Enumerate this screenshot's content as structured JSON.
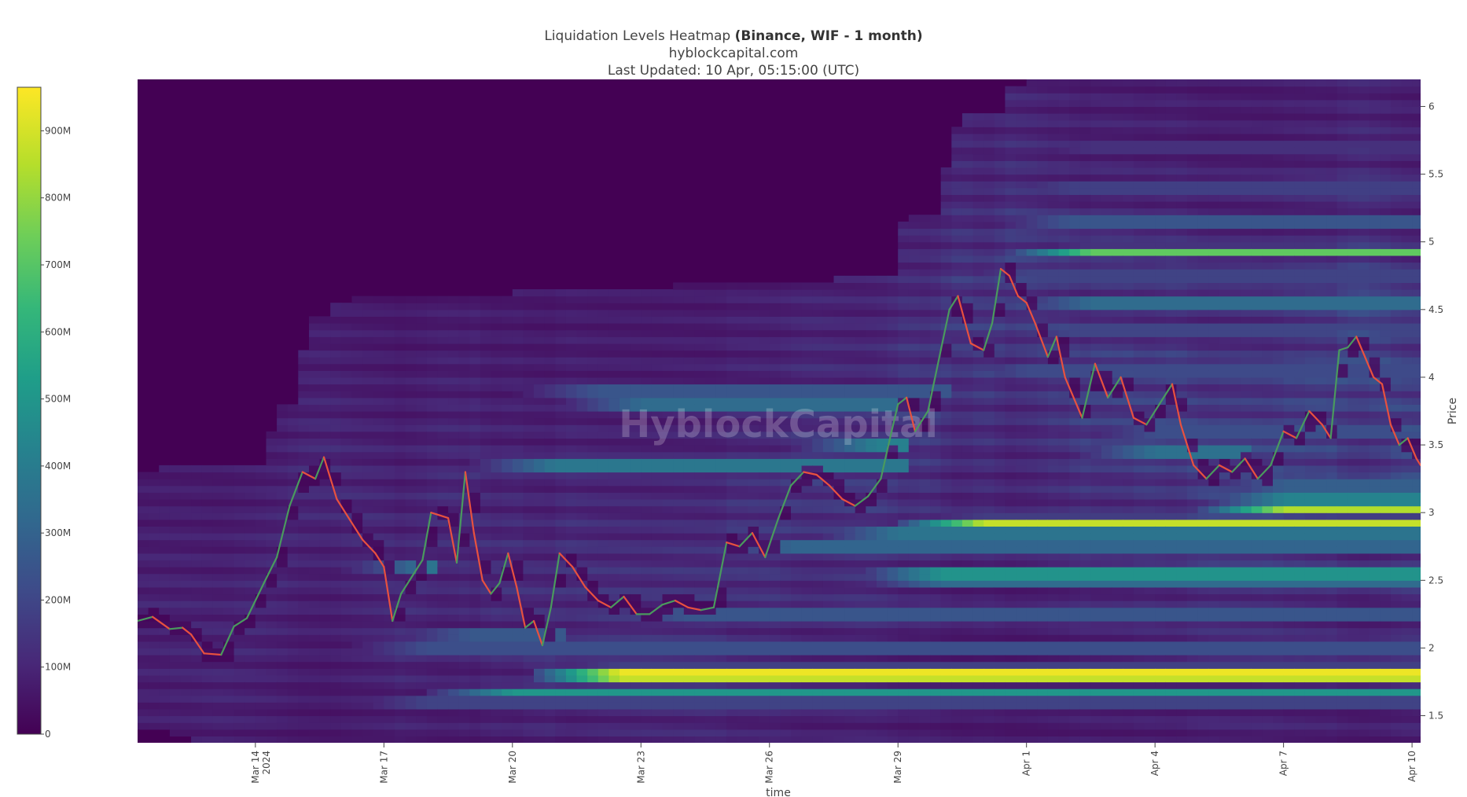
{
  "title": {
    "main": "Liquidation Levels Heatmap ",
    "bold": "(Binance, WIF - 1 month)",
    "site": "hyblockcapital.com",
    "updated": "Last Updated: 10 Apr, 05:15:00 (UTC)"
  },
  "watermark": "HyblockCapital",
  "colors": {
    "background": "#440154",
    "price_up": "#4a9a5e",
    "price_down": "#e8513f",
    "colorscale": [
      "#440154",
      "#482878",
      "#3e4a89",
      "#31688e",
      "#26828e",
      "#1f9e89",
      "#35b779",
      "#6ece58",
      "#b5de2b",
      "#fde725"
    ]
  },
  "chart_data": {
    "type": "heatmap",
    "title": "Liquidation Levels Heatmap (Binance, WIF - 1 month)",
    "xlabel": "time",
    "ylabel": "Price",
    "x_ticks": [
      {
        "label": "Mar 14",
        "sub": "2024",
        "day": 14
      },
      {
        "label": "Mar 17",
        "sub": "",
        "day": 17
      },
      {
        "label": "Mar 20",
        "sub": "",
        "day": 20
      },
      {
        "label": "Mar 23",
        "sub": "",
        "day": 23
      },
      {
        "label": "Mar 26",
        "sub": "",
        "day": 26
      },
      {
        "label": "Mar 29",
        "sub": "",
        "day": 29
      },
      {
        "label": "Apr 1",
        "sub": "",
        "day": 32
      },
      {
        "label": "Apr 4",
        "sub": "",
        "day": 35
      },
      {
        "label": "Apr 7",
        "sub": "",
        "day": 38
      },
      {
        "label": "Apr 10",
        "sub": "",
        "day": 41
      }
    ],
    "x_range_day": [
      11.25,
      41.2
    ],
    "y_ticks": [
      1.5,
      2,
      2.5,
      3,
      3.5,
      4,
      4.5,
      5,
      5.5,
      6
    ],
    "y_tick_labels": [
      "1.5",
      "2",
      "2.5",
      "3",
      "3.5",
      "4",
      "4.5",
      "5",
      "5.5",
      "6"
    ],
    "ylim": [
      1.3,
      6.2
    ],
    "colorbar": {
      "ticks": [
        0,
        100,
        200,
        300,
        400,
        500,
        600,
        700,
        800,
        900
      ],
      "tick_labels": [
        "0",
        "100M",
        "200M",
        "300M",
        "400M",
        "500M",
        "600M",
        "700M",
        "800M",
        "900M"
      ],
      "range_millions": [
        0,
        965
      ]
    },
    "price_series": {
      "name": "WIF",
      "points": [
        [
          11.25,
          2.2
        ],
        [
          11.6,
          2.23
        ],
        [
          12.0,
          2.14
        ],
        [
          12.3,
          2.15
        ],
        [
          12.5,
          2.1
        ],
        [
          12.8,
          1.96
        ],
        [
          13.2,
          1.95
        ],
        [
          13.5,
          2.16
        ],
        [
          13.8,
          2.22
        ],
        [
          14.2,
          2.48
        ],
        [
          14.5,
          2.67
        ],
        [
          14.8,
          3.05
        ],
        [
          15.1,
          3.3
        ],
        [
          15.4,
          3.25
        ],
        [
          15.6,
          3.41
        ],
        [
          15.9,
          3.1
        ],
        [
          16.2,
          2.95
        ],
        [
          16.5,
          2.8
        ],
        [
          16.8,
          2.7
        ],
        [
          17.0,
          2.6
        ],
        [
          17.2,
          2.2
        ],
        [
          17.4,
          2.4
        ],
        [
          17.6,
          2.5
        ],
        [
          17.9,
          2.65
        ],
        [
          18.1,
          3.0
        ],
        [
          18.3,
          2.98
        ],
        [
          18.5,
          2.96
        ],
        [
          18.7,
          2.63
        ],
        [
          18.9,
          3.3
        ],
        [
          19.1,
          2.85
        ],
        [
          19.3,
          2.5
        ],
        [
          19.5,
          2.4
        ],
        [
          19.7,
          2.48
        ],
        [
          19.9,
          2.7
        ],
        [
          20.1,
          2.45
        ],
        [
          20.3,
          2.15
        ],
        [
          20.5,
          2.2
        ],
        [
          20.7,
          2.02
        ],
        [
          20.9,
          2.3
        ],
        [
          21.1,
          2.7
        ],
        [
          21.4,
          2.6
        ],
        [
          21.7,
          2.45
        ],
        [
          22.0,
          2.35
        ],
        [
          22.3,
          2.3
        ],
        [
          22.6,
          2.38
        ],
        [
          22.9,
          2.25
        ],
        [
          23.2,
          2.25
        ],
        [
          23.5,
          2.32
        ],
        [
          23.8,
          2.35
        ],
        [
          24.1,
          2.3
        ],
        [
          24.4,
          2.28
        ],
        [
          24.7,
          2.3
        ],
        [
          25.0,
          2.78
        ],
        [
          25.3,
          2.75
        ],
        [
          25.6,
          2.85
        ],
        [
          25.9,
          2.67
        ],
        [
          26.2,
          2.95
        ],
        [
          26.5,
          3.2
        ],
        [
          26.8,
          3.3
        ],
        [
          27.1,
          3.28
        ],
        [
          27.4,
          3.2
        ],
        [
          27.7,
          3.1
        ],
        [
          28.0,
          3.05
        ],
        [
          28.3,
          3.12
        ],
        [
          28.6,
          3.25
        ],
        [
          28.8,
          3.53
        ],
        [
          29.0,
          3.8
        ],
        [
          29.2,
          3.85
        ],
        [
          29.4,
          3.6
        ],
        [
          29.7,
          3.75
        ],
        [
          30.0,
          4.2
        ],
        [
          30.2,
          4.5
        ],
        [
          30.4,
          4.6
        ],
        [
          30.7,
          4.25
        ],
        [
          31.0,
          4.2
        ],
        [
          31.2,
          4.4
        ],
        [
          31.4,
          4.8
        ],
        [
          31.6,
          4.75
        ],
        [
          31.8,
          4.6
        ],
        [
          32.0,
          4.55
        ],
        [
          32.2,
          4.4
        ],
        [
          32.5,
          4.15
        ],
        [
          32.7,
          4.3
        ],
        [
          32.9,
          4.0
        ],
        [
          33.1,
          3.85
        ],
        [
          33.3,
          3.7
        ],
        [
          33.6,
          4.1
        ],
        [
          33.9,
          3.85
        ],
        [
          34.2,
          4.0
        ],
        [
          34.5,
          3.7
        ],
        [
          34.8,
          3.65
        ],
        [
          35.1,
          3.8
        ],
        [
          35.4,
          3.95
        ],
        [
          35.6,
          3.65
        ],
        [
          35.9,
          3.35
        ],
        [
          36.2,
          3.25
        ],
        [
          36.5,
          3.35
        ],
        [
          36.8,
          3.3
        ],
        [
          37.1,
          3.4
        ],
        [
          37.4,
          3.25
        ],
        [
          37.7,
          3.35
        ],
        [
          38.0,
          3.6
        ],
        [
          38.3,
          3.55
        ],
        [
          38.6,
          3.75
        ],
        [
          38.9,
          3.65
        ],
        [
          39.1,
          3.55
        ],
        [
          39.3,
          4.2
        ],
        [
          39.5,
          4.22
        ],
        [
          39.7,
          4.3
        ],
        [
          39.9,
          4.15
        ],
        [
          40.1,
          4.0
        ],
        [
          40.3,
          3.95
        ],
        [
          40.5,
          3.65
        ],
        [
          40.7,
          3.5
        ],
        [
          40.9,
          3.55
        ],
        [
          41.1,
          3.4
        ],
        [
          41.2,
          3.35
        ]
      ]
    },
    "liquidation_bands": [
      {
        "price": 1.83,
        "start": 20.5,
        "end": 41.2,
        "peak_millions": 960
      },
      {
        "price": 1.78,
        "start": 20.5,
        "end": 41.2,
        "peak_millions": 900
      },
      {
        "price": 2.93,
        "start": 29.0,
        "end": 41.2,
        "peak_millions": 900
      },
      {
        "price": 3.02,
        "start": 36.0,
        "end": 41.2,
        "peak_millions": 870
      },
      {
        "price": 3.1,
        "start": 36.0,
        "end": 41.2,
        "peak_millions": 720
      },
      {
        "price": 2.55,
        "start": 28.0,
        "end": 41.2,
        "peak_millions": 820
      },
      {
        "price": 2.5,
        "start": 28.0,
        "end": 41.2,
        "peak_millions": 560
      },
      {
        "price": 2.6,
        "start": 16.0,
        "end": 18.0,
        "peak_millions": 620
      },
      {
        "price": 3.5,
        "start": 26.5,
        "end": 29.0,
        "peak_millions": 700
      },
      {
        "price": 3.35,
        "start": 19.0,
        "end": 29.0,
        "peak_millions": 640
      },
      {
        "price": 3.8,
        "start": 21.0,
        "end": 29.0,
        "peak_millions": 560
      },
      {
        "price": 3.45,
        "start": 33.0,
        "end": 37.0,
        "peak_millions": 600
      },
      {
        "price": 4.93,
        "start": 31.5,
        "end": 41.2,
        "peak_millions": 740
      },
      {
        "price": 4.55,
        "start": 31.5,
        "end": 41.2,
        "peak_millions": 560
      },
      {
        "price": 4.75,
        "start": 30.0,
        "end": 41.2,
        "peak_millions": 320
      },
      {
        "price": 2.1,
        "start": 17.0,
        "end": 21.0,
        "peak_millions": 440
      },
      {
        "price": 2.0,
        "start": 16.0,
        "end": 41.2,
        "peak_millions": 380
      },
      {
        "price": 1.67,
        "start": 18.0,
        "end": 41.2,
        "peak_millions": 520
      },
      {
        "price": 1.6,
        "start": 16.0,
        "end": 41.2,
        "peak_millions": 320
      },
      {
        "price": 2.25,
        "start": 22.0,
        "end": 41.2,
        "peak_millions": 420
      },
      {
        "price": 2.75,
        "start": 24.5,
        "end": 41.2,
        "peak_millions": 520
      },
      {
        "price": 2.85,
        "start": 27.0,
        "end": 41.2,
        "peak_millions": 620
      },
      {
        "price": 3.2,
        "start": 36.0,
        "end": 41.2,
        "peak_millions": 480
      },
      {
        "price": 3.6,
        "start": 33.0,
        "end": 41.2,
        "peak_millions": 380
      },
      {
        "price": 3.9,
        "start": 20.0,
        "end": 30.0,
        "peak_millions": 420
      },
      {
        "price": 4.05,
        "start": 30.0,
        "end": 41.2,
        "peak_millions": 360
      },
      {
        "price": 4.35,
        "start": 31.0,
        "end": 41.2,
        "peak_millions": 330
      },
      {
        "price": 5.15,
        "start": 31.0,
        "end": 41.2,
        "peak_millions": 420
      },
      {
        "price": 5.4,
        "start": 31.0,
        "end": 41.2,
        "peak_millions": 300
      },
      {
        "price": 5.7,
        "start": 31.5,
        "end": 41.2,
        "peak_millions": 220
      }
    ]
  }
}
